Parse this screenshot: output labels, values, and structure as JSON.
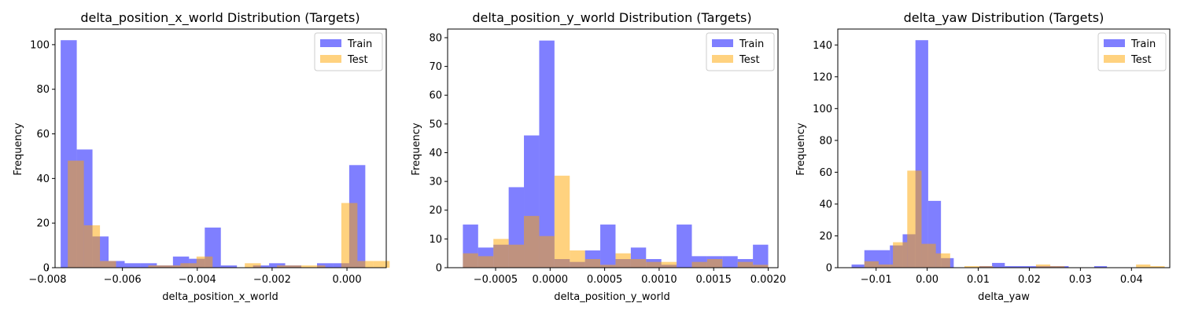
{
  "chart_data": [
    {
      "type": "histogram",
      "title": "delta_position_x_world Distribution (Targets)",
      "xlabel": "delta_position_x_world",
      "ylabel": "Frequency",
      "xlim": [
        -0.0078,
        0.00105
      ],
      "ylim": [
        0,
        107
      ],
      "xticks": [
        -0.008,
        -0.006,
        -0.004,
        -0.002,
        0.0
      ],
      "xtick_labels": [
        "−0.008",
        "−0.006",
        "−0.004",
        "−0.002",
        "0.000"
      ],
      "yticks": [
        0,
        20,
        40,
        60,
        80,
        100
      ],
      "ytick_labels": [
        "0",
        "20",
        "40",
        "60",
        "80",
        "100"
      ],
      "legend_position": "upper right",
      "series": [
        {
          "name": "Train",
          "color": "#0000ff",
          "bins": [
            {
              "x0": -0.00765,
              "x1": -0.00722,
              "count": 102
            },
            {
              "x0": -0.00722,
              "x1": -0.0068,
              "count": 53
            },
            {
              "x0": -0.0068,
              "x1": -0.00637,
              "count": 14
            },
            {
              "x0": -0.00637,
              "x1": -0.00594,
              "count": 3
            },
            {
              "x0": -0.00594,
              "x1": -0.00551,
              "count": 2
            },
            {
              "x0": -0.00551,
              "x1": -0.00508,
              "count": 2
            },
            {
              "x0": -0.00508,
              "x1": -0.00465,
              "count": 1
            },
            {
              "x0": -0.00465,
              "x1": -0.00422,
              "count": 5
            },
            {
              "x0": -0.00422,
              "x1": -0.0038,
              "count": 4
            },
            {
              "x0": -0.0038,
              "x1": -0.00337,
              "count": 18
            },
            {
              "x0": -0.00337,
              "x1": -0.00294,
              "count": 1
            },
            {
              "x0": -0.00294,
              "x1": -0.00251,
              "count": 0
            },
            {
              "x0": -0.00251,
              "x1": -0.00208,
              "count": 1
            },
            {
              "x0": -0.00208,
              "x1": -0.00165,
              "count": 2
            },
            {
              "x0": -0.00165,
              "x1": -0.00122,
              "count": 1
            },
            {
              "x0": -0.00122,
              "x1": -0.0008,
              "count": 0
            },
            {
              "x0": -0.0008,
              "x1": -0.00037,
              "count": 2
            },
            {
              "x0": -0.00037,
              "x1": 6e-05,
              "count": 2
            },
            {
              "x0": 6e-05,
              "x1": 0.00049,
              "count": 46
            },
            {
              "x0": 0.00049,
              "x1": 0.00092,
              "count": 0
            }
          ]
        },
        {
          "name": "Test",
          "color": "#ffa500",
          "bins": [
            {
              "x0": -0.00746,
              "x1": -0.00703,
              "count": 48
            },
            {
              "x0": -0.00703,
              "x1": -0.0066,
              "count": 19
            },
            {
              "x0": -0.0066,
              "x1": -0.00617,
              "count": 3
            },
            {
              "x0": -0.00617,
              "x1": -0.00574,
              "count": 0
            },
            {
              "x0": -0.00574,
              "x1": -0.00531,
              "count": 0
            },
            {
              "x0": -0.00531,
              "x1": -0.00488,
              "count": 1
            },
            {
              "x0": -0.00488,
              "x1": -0.00445,
              "count": 1
            },
            {
              "x0": -0.00445,
              "x1": -0.00402,
              "count": 2
            },
            {
              "x0": -0.00402,
              "x1": -0.00359,
              "count": 5
            },
            {
              "x0": -0.00359,
              "x1": -0.00316,
              "count": 0
            },
            {
              "x0": -0.00316,
              "x1": -0.00273,
              "count": 0
            },
            {
              "x0": -0.00273,
              "x1": -0.0023,
              "count": 2
            },
            {
              "x0": -0.0023,
              "x1": -0.00187,
              "count": 0
            },
            {
              "x0": -0.00187,
              "x1": -0.00144,
              "count": 1
            },
            {
              "x0": -0.00144,
              "x1": -0.00101,
              "count": 1
            },
            {
              "x0": -0.00101,
              "x1": -0.00058,
              "count": 1
            },
            {
              "x0": -0.00058,
              "x1": -0.00015,
              "count": 0
            },
            {
              "x0": -0.00015,
              "x1": 0.00028,
              "count": 29
            },
            {
              "x0": 0.00028,
              "x1": 0.00071,
              "count": 3
            },
            {
              "x0": 0.00071,
              "x1": 0.00114,
              "count": 3
            }
          ]
        }
      ]
    },
    {
      "type": "histogram",
      "title": "delta_position_y_world Distribution (Targets)",
      "xlabel": "delta_position_y_world",
      "ylabel": "Frequency",
      "xlim": [
        -0.00094,
        0.00209
      ],
      "ylim": [
        0,
        83
      ],
      "xticks": [
        -0.0005,
        0.0,
        0.0005,
        0.001,
        0.0015,
        0.002
      ],
      "xtick_labels": [
        "−0.0005",
        "0.0000",
        "0.0005",
        "0.0010",
        "0.0015",
        "0.0020"
      ],
      "yticks": [
        0,
        10,
        20,
        30,
        40,
        50,
        60,
        70,
        80
      ],
      "ytick_labels": [
        "0",
        "10",
        "20",
        "30",
        "40",
        "50",
        "60",
        "70",
        "80"
      ],
      "legend_position": "upper right",
      "series": [
        {
          "name": "Train",
          "color": "#0000ff",
          "bins": [
            {
              "x0": -0.0008,
              "x1": -0.00066,
              "count": 15
            },
            {
              "x0": -0.00066,
              "x1": -0.00052,
              "count": 7
            },
            {
              "x0": -0.00052,
              "x1": -0.00038,
              "count": 8
            },
            {
              "x0": -0.00038,
              "x1": -0.00024,
              "count": 28
            },
            {
              "x0": -0.00024,
              "x1": -0.0001,
              "count": 46
            },
            {
              "x0": -0.0001,
              "x1": 4e-05,
              "count": 79
            },
            {
              "x0": 4e-05,
              "x1": 0.00018,
              "count": 3
            },
            {
              "x0": 0.00018,
              "x1": 0.00032,
              "count": 2
            },
            {
              "x0": 0.00032,
              "x1": 0.00046,
              "count": 6
            },
            {
              "x0": 0.00046,
              "x1": 0.0006,
              "count": 15
            },
            {
              "x0": 0.0006,
              "x1": 0.00074,
              "count": 3
            },
            {
              "x0": 0.00074,
              "x1": 0.00088,
              "count": 7
            },
            {
              "x0": 0.00088,
              "x1": 0.00102,
              "count": 3
            },
            {
              "x0": 0.00102,
              "x1": 0.00116,
              "count": 1
            },
            {
              "x0": 0.00116,
              "x1": 0.0013,
              "count": 15
            },
            {
              "x0": 0.0013,
              "x1": 0.00144,
              "count": 4
            },
            {
              "x0": 0.00144,
              "x1": 0.00158,
              "count": 4
            },
            {
              "x0": 0.00158,
              "x1": 0.00172,
              "count": 4
            },
            {
              "x0": 0.00172,
              "x1": 0.00186,
              "count": 3
            },
            {
              "x0": 0.00186,
              "x1": 0.002,
              "count": 8
            }
          ]
        },
        {
          "name": "Test",
          "color": "#ffa500",
          "bins": [
            {
              "x0": -0.0008,
              "x1": -0.00066,
              "count": 5
            },
            {
              "x0": -0.00066,
              "x1": -0.00052,
              "count": 4
            },
            {
              "x0": -0.00052,
              "x1": -0.00038,
              "count": 10
            },
            {
              "x0": -0.00038,
              "x1": -0.00024,
              "count": 8
            },
            {
              "x0": -0.00024,
              "x1": -0.0001,
              "count": 18
            },
            {
              "x0": -0.0001,
              "x1": 4e-05,
              "count": 11
            },
            {
              "x0": 4e-05,
              "x1": 0.00018,
              "count": 32
            },
            {
              "x0": 0.00018,
              "x1": 0.00032,
              "count": 6
            },
            {
              "x0": 0.00032,
              "x1": 0.00046,
              "count": 3
            },
            {
              "x0": 0.00046,
              "x1": 0.0006,
              "count": 1
            },
            {
              "x0": 0.0006,
              "x1": 0.00074,
              "count": 5
            },
            {
              "x0": 0.00074,
              "x1": 0.00088,
              "count": 3
            },
            {
              "x0": 0.00088,
              "x1": 0.00102,
              "count": 2
            },
            {
              "x0": 0.00102,
              "x1": 0.00116,
              "count": 2
            },
            {
              "x0": 0.00116,
              "x1": 0.0013,
              "count": 0
            },
            {
              "x0": 0.0013,
              "x1": 0.00144,
              "count": 2
            },
            {
              "x0": 0.00144,
              "x1": 0.00158,
              "count": 3
            },
            {
              "x0": 0.00158,
              "x1": 0.00172,
              "count": 0
            },
            {
              "x0": 0.00172,
              "x1": 0.00186,
              "count": 2
            },
            {
              "x0": 0.00186,
              "x1": 0.002,
              "count": 1
            }
          ]
        }
      ]
    },
    {
      "type": "histogram",
      "title": "delta_yaw Distribution (Targets)",
      "xlabel": "delta_yaw",
      "ylabel": "Frequency",
      "xlim": [
        -0.0175,
        0.0475
      ],
      "ylim": [
        0,
        150
      ],
      "xticks": [
        -0.01,
        0.0,
        0.01,
        0.02,
        0.03,
        0.04
      ],
      "xtick_labels": [
        "−0.01",
        "0.00",
        "0.01",
        "0.02",
        "0.03",
        "0.04"
      ],
      "yticks": [
        0,
        20,
        40,
        60,
        80,
        100,
        120,
        140
      ],
      "ytick_labels": [
        "0",
        "20",
        "40",
        "60",
        "80",
        "100",
        "120",
        "140"
      ],
      "legend_position": "upper right",
      "series": [
        {
          "name": "Train",
          "color": "#0000ff",
          "bins": [
            {
              "x0": -0.0148,
              "x1": -0.0123,
              "count": 2
            },
            {
              "x0": -0.0123,
              "x1": -0.0098,
              "count": 11
            },
            {
              "x0": -0.0098,
              "x1": -0.0073,
              "count": 11
            },
            {
              "x0": -0.0073,
              "x1": -0.0048,
              "count": 14
            },
            {
              "x0": -0.0048,
              "x1": -0.0023,
              "count": 21
            },
            {
              "x0": -0.0023,
              "x1": 0.0002,
              "count": 143
            },
            {
              "x0": 0.0002,
              "x1": 0.0027,
              "count": 42
            },
            {
              "x0": 0.0027,
              "x1": 0.0052,
              "count": 6
            },
            {
              "x0": 0.0052,
              "x1": 0.0077,
              "count": 0
            },
            {
              "x0": 0.0077,
              "x1": 0.0102,
              "count": 0
            },
            {
              "x0": 0.0102,
              "x1": 0.0127,
              "count": 1
            },
            {
              "x0": 0.0127,
              "x1": 0.0152,
              "count": 3
            },
            {
              "x0": 0.0152,
              "x1": 0.0177,
              "count": 1
            },
            {
              "x0": 0.0177,
              "x1": 0.0202,
              "count": 1
            },
            {
              "x0": 0.0202,
              "x1": 0.0227,
              "count": 1
            },
            {
              "x0": 0.0227,
              "x1": 0.0252,
              "count": 1
            },
            {
              "x0": 0.0252,
              "x1": 0.0277,
              "count": 1
            },
            {
              "x0": 0.0277,
              "x1": 0.0302,
              "count": 0
            },
            {
              "x0": 0.0302,
              "x1": 0.0327,
              "count": 0
            },
            {
              "x0": 0.0327,
              "x1": 0.0352,
              "count": 1
            }
          ]
        },
        {
          "name": "Test",
          "color": "#ffa500",
          "bins": [
            {
              "x0": -0.0123,
              "x1": -0.0095,
              "count": 4
            },
            {
              "x0": -0.0095,
              "x1": -0.0067,
              "count": 2
            },
            {
              "x0": -0.0067,
              "x1": -0.0039,
              "count": 16
            },
            {
              "x0": -0.0039,
              "x1": -0.0011,
              "count": 61
            },
            {
              "x0": -0.0011,
              "x1": 0.0017,
              "count": 15
            },
            {
              "x0": 0.0017,
              "x1": 0.0045,
              "count": 9
            },
            {
              "x0": 0.0045,
              "x1": 0.0073,
              "count": 0
            },
            {
              "x0": 0.0073,
              "x1": 0.0101,
              "count": 1
            },
            {
              "x0": 0.0101,
              "x1": 0.0129,
              "count": 1
            },
            {
              "x0": 0.0129,
              "x1": 0.0157,
              "count": 0
            },
            {
              "x0": 0.0157,
              "x1": 0.0185,
              "count": 0
            },
            {
              "x0": 0.0185,
              "x1": 0.0213,
              "count": 0
            },
            {
              "x0": 0.0213,
              "x1": 0.0241,
              "count": 2
            },
            {
              "x0": 0.0241,
              "x1": 0.0269,
              "count": 1
            },
            {
              "x0": 0.0269,
              "x1": 0.0297,
              "count": 0
            },
            {
              "x0": 0.0297,
              "x1": 0.0325,
              "count": 0
            },
            {
              "x0": 0.0325,
              "x1": 0.0353,
              "count": 0
            },
            {
              "x0": 0.0353,
              "x1": 0.0381,
              "count": 0
            },
            {
              "x0": 0.0381,
              "x1": 0.0409,
              "count": 0
            },
            {
              "x0": 0.0409,
              "x1": 0.0437,
              "count": 2
            },
            {
              "x0": 0.0437,
              "x1": 0.0465,
              "count": 1
            }
          ]
        }
      ]
    }
  ]
}
